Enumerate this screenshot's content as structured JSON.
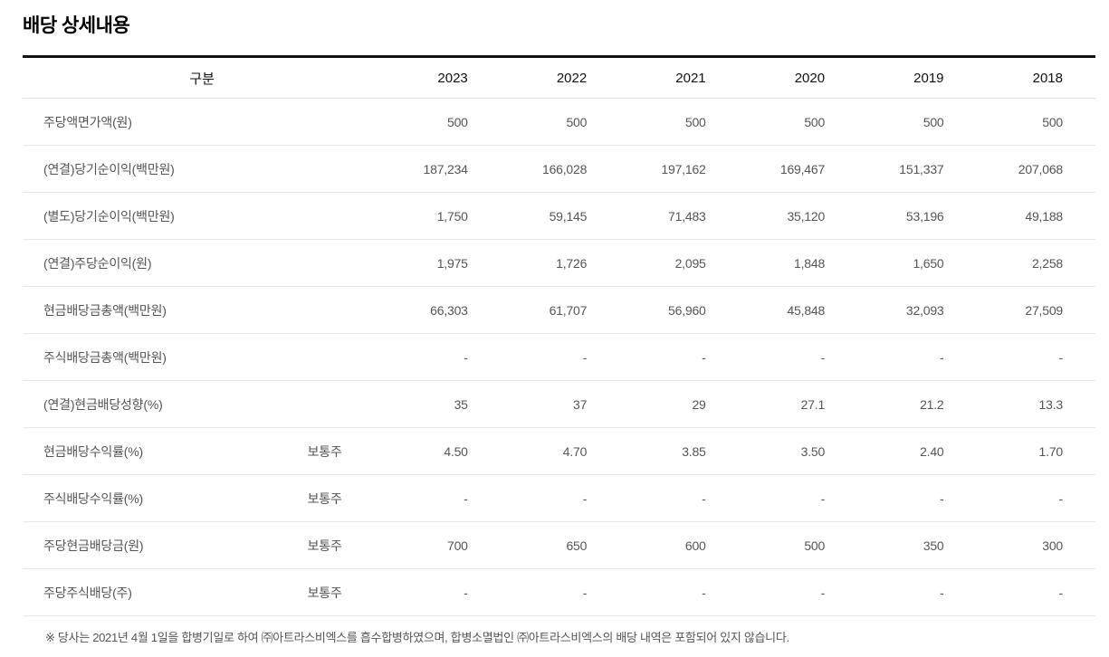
{
  "page": {
    "title": "배당 상세내용",
    "footnote": "※ 당사는 2021년 4월 1일을 합병기일로 하여 ㈜아트라스비엑스를 흡수합병하였으며, 합병소멸법인 ㈜아트라스비엑스의 배당 내역은 포함되어 있지 않습니다."
  },
  "colors": {
    "title_text": "#000000",
    "header_text": "#111111",
    "body_text": "#555555",
    "top_border": "#111111",
    "row_divider": "#e8e8e8"
  },
  "table": {
    "header": {
      "label": "구분",
      "years": [
        "2023",
        "2022",
        "2021",
        "2020",
        "2019",
        "2018"
      ]
    },
    "rows": [
      {
        "label": "주당액면가액(원)",
        "sub": "",
        "values": [
          "500",
          "500",
          "500",
          "500",
          "500",
          "500"
        ]
      },
      {
        "label": "(연결)당기순이익(백만원)",
        "sub": "",
        "values": [
          "187,234",
          "166,028",
          "197,162",
          "169,467",
          "151,337",
          "207,068"
        ]
      },
      {
        "label": "(별도)당기순이익(백만원)",
        "sub": "",
        "values": [
          "1,750",
          "59,145",
          "71,483",
          "35,120",
          "53,196",
          "49,188"
        ]
      },
      {
        "label": "(연결)주당순이익(원)",
        "sub": "",
        "values": [
          "1,975",
          "1,726",
          "2,095",
          "1,848",
          "1,650",
          "2,258"
        ]
      },
      {
        "label": "현금배당금총액(백만원)",
        "sub": "",
        "values": [
          "66,303",
          "61,707",
          "56,960",
          "45,848",
          "32,093",
          "27,509"
        ]
      },
      {
        "label": "주식배당금총액(백만원)",
        "sub": "",
        "values": [
          "-",
          "-",
          "-",
          "-",
          "-",
          "-"
        ]
      },
      {
        "label": "(연결)현금배당성향(%)",
        "sub": "",
        "values": [
          "35",
          "37",
          "29",
          "27.1",
          "21.2",
          "13.3"
        ]
      },
      {
        "label": "현금배당수익률(%)",
        "sub": "보통주",
        "values": [
          "4.50",
          "4.70",
          "3.85",
          "3.50",
          "2.40",
          "1.70"
        ]
      },
      {
        "label": "주식배당수익률(%)",
        "sub": "보통주",
        "values": [
          "-",
          "-",
          "-",
          "-",
          "-",
          "-"
        ]
      },
      {
        "label": "주당현금배당금(원)",
        "sub": "보통주",
        "values": [
          "700",
          "650",
          "600",
          "500",
          "350",
          "300"
        ]
      },
      {
        "label": "주당주식배당(주)",
        "sub": "보통주",
        "values": [
          "-",
          "-",
          "-",
          "-",
          "-",
          "-"
        ]
      }
    ]
  }
}
